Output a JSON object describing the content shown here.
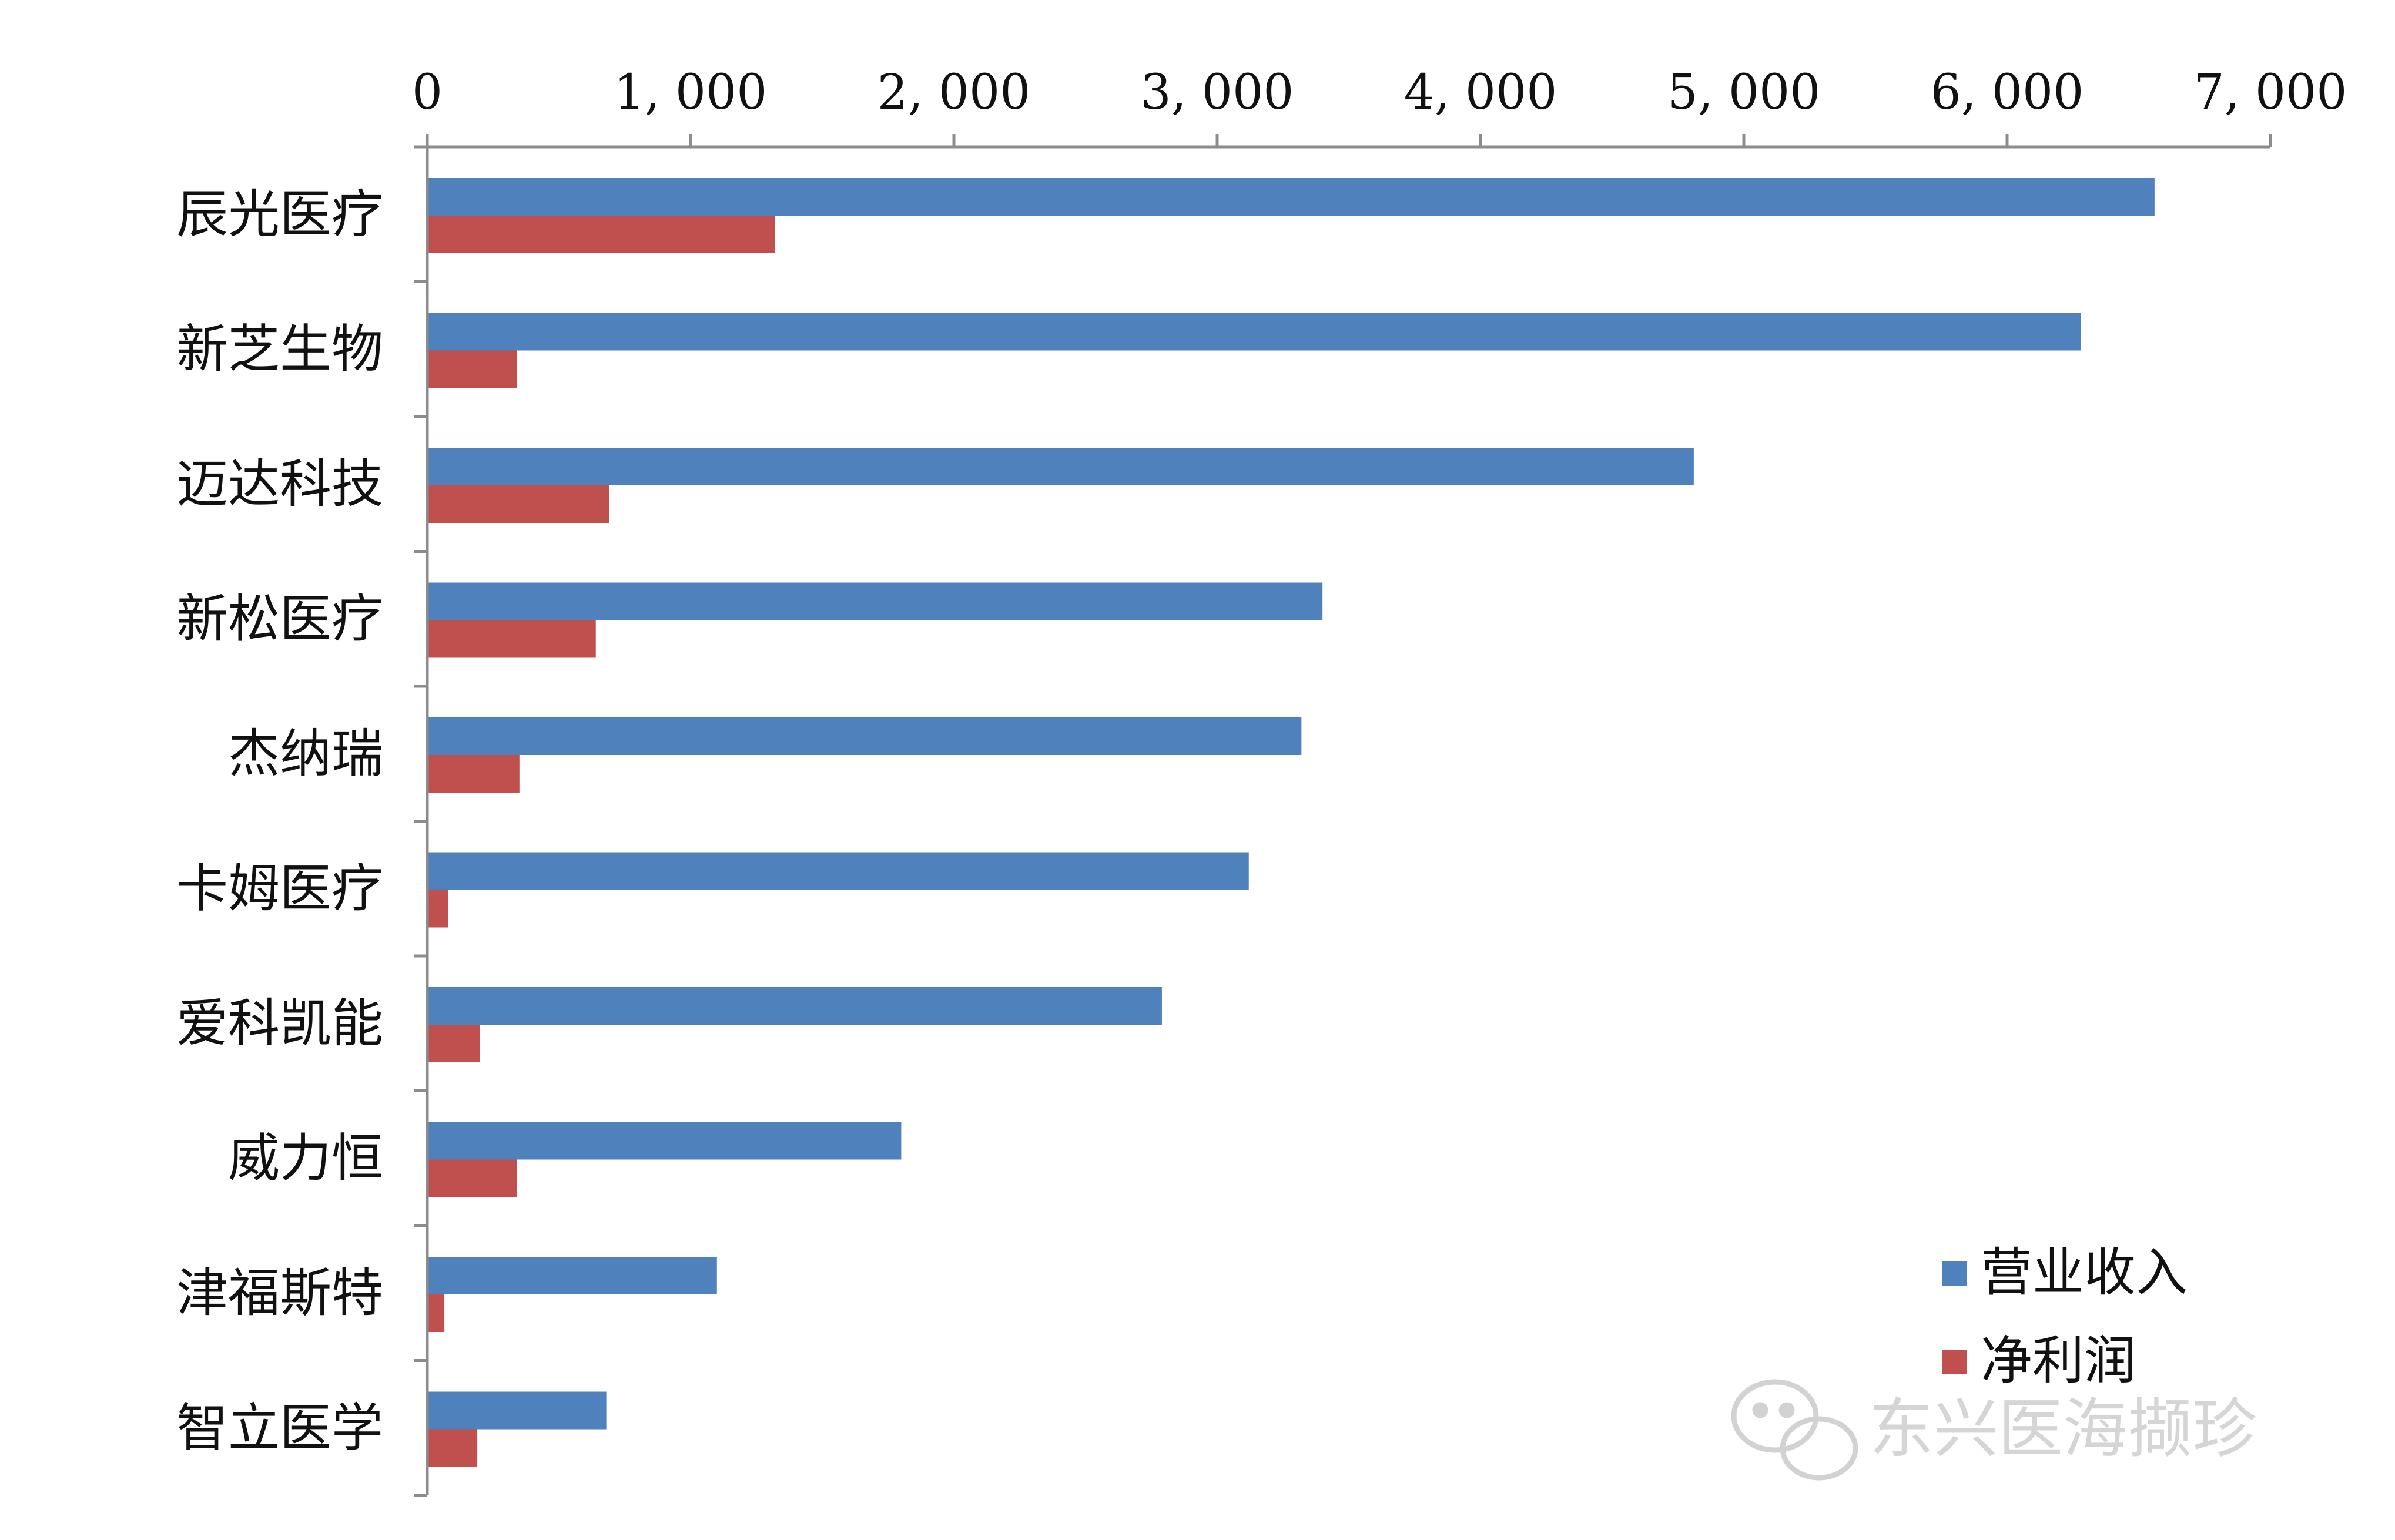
{
  "chart_data": {
    "type": "bar",
    "orientation": "horizontal",
    "categories": [
      "辰光医疗",
      "新芝生物",
      "迈达科技",
      "新松医疗",
      "杰纳瑞",
      "卡姆医疗",
      "爱科凯能",
      "威力恒",
      "津福斯特",
      "智立医学"
    ],
    "series": [
      {
        "name": "营业收入",
        "color": "#4f81bd",
        "values": [
          6560,
          6280,
          4810,
          3400,
          3320,
          3120,
          2790,
          1800,
          1100,
          680
        ]
      },
      {
        "name": "净利润",
        "color": "#c0504d",
        "values": [
          1320,
          340,
          690,
          640,
          350,
          80,
          200,
          340,
          65,
          190
        ]
      }
    ],
    "xlim": [
      0,
      7000
    ],
    "xticks": [
      0,
      1000,
      2000,
      3000,
      4000,
      5000,
      6000,
      7000
    ],
    "xtick_labels": [
      "0",
      "1, 000",
      "2, 000",
      "3, 000",
      "4, 000",
      "5, 000",
      "6, 000",
      "7, 000"
    ],
    "axis_position": "top",
    "legend_position": "bottom-right",
    "title": "",
    "xlabel": "",
    "ylabel": ""
  },
  "watermark": {
    "text": "东兴医海撷珍",
    "icon": "wechat-icon"
  }
}
